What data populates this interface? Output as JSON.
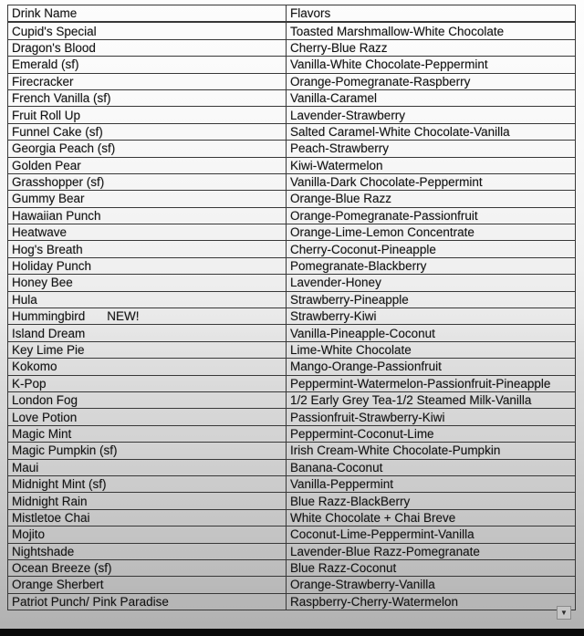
{
  "table": {
    "columns": [
      "Drink Name",
      "Flavors"
    ],
    "rows": [
      {
        "drink": "Cupid's Special",
        "flavors": "Toasted Marshmallow-White Chocolate"
      },
      {
        "drink": "Dragon's Blood",
        "flavors": "Cherry-Blue Razz"
      },
      {
        "drink": "Emerald (sf)",
        "flavors": "Vanilla-White Chocolate-Peppermint"
      },
      {
        "drink": "Firecracker",
        "flavors": "Orange-Pomegranate-Raspberry"
      },
      {
        "drink": "French Vanilla (sf)",
        "flavors": "Vanilla-Caramel"
      },
      {
        "drink": "Fruit Roll Up",
        "flavors": "Lavender-Strawberry"
      },
      {
        "drink": "Funnel Cake (sf)",
        "flavors": "Salted Caramel-White Chocolate-Vanilla"
      },
      {
        "drink": "Georgia Peach (sf)",
        "flavors": "Peach-Strawberry"
      },
      {
        "drink": "Golden Pear",
        "flavors": "Kiwi-Watermelon"
      },
      {
        "drink": "Grasshopper (sf)",
        "flavors": "Vanilla-Dark Chocolate-Peppermint"
      },
      {
        "drink": "Gummy Bear",
        "flavors": "Orange-Blue Razz"
      },
      {
        "drink": "Hawaiian Punch",
        "flavors": "Orange-Pomegranate-Passionfruit"
      },
      {
        "drink": "Heatwave",
        "flavors": "Orange-Lime-Lemon Concentrate"
      },
      {
        "drink": "Hog's Breath",
        "flavors": "Cherry-Coconut-Pineapple"
      },
      {
        "drink": "Holiday Punch",
        "flavors": "Pomegranate-Blackberry"
      },
      {
        "drink": "Honey Bee",
        "flavors": "Lavender-Honey"
      },
      {
        "drink": "Hula",
        "flavors": "Strawberry-Pineapple"
      },
      {
        "drink": "Hummingbird",
        "tag": "NEW!",
        "flavors": "Strawberry-Kiwi"
      },
      {
        "drink": "Island Dream",
        "flavors": "Vanilla-Pineapple-Coconut"
      },
      {
        "drink": "Key Lime Pie",
        "flavors": "Lime-White Chocolate"
      },
      {
        "drink": "Kokomo",
        "flavors": "Mango-Orange-Passionfruit"
      },
      {
        "drink": "K-Pop",
        "flavors": "Peppermint-Watermelon-Passionfruit-Pineapple"
      },
      {
        "drink": "London Fog",
        "flavors": "1/2 Early Grey Tea-1/2 Steamed Milk-Vanilla"
      },
      {
        "drink": "Love Potion",
        "flavors": "Passionfruit-Strawberry-Kiwi"
      },
      {
        "drink": "Magic Mint",
        "flavors": "Peppermint-Coconut-Lime"
      },
      {
        "drink": "Magic Pumpkin (sf)",
        "flavors": "Irish Cream-White Chocolate-Pumpkin"
      },
      {
        "drink": "Maui",
        "flavors": "Banana-Coconut"
      },
      {
        "drink": "Midnight Mint (sf)",
        "flavors": "Vanilla-Peppermint"
      },
      {
        "drink": "Midnight Rain",
        "flavors": "Blue Razz-BlackBerry"
      },
      {
        "drink": "Mistletoe Chai",
        "flavors": "White Chocolate + Chai Breve"
      },
      {
        "drink": "Mojito",
        "flavors": "Coconut-Lime-Peppermint-Vanilla"
      },
      {
        "drink": "Nightshade",
        "flavors": "Lavender-Blue Razz-Pomegranate"
      },
      {
        "drink": "Ocean Breeze (sf)",
        "flavors": "Blue Razz-Coconut"
      },
      {
        "drink": "Orange Sherbert",
        "flavors": "Orange-Strawberry-Vanilla"
      },
      {
        "drink": "Patriot Punch/ Pink Paradise",
        "flavors": "Raspberry-Cherry-Watermelon"
      }
    ]
  },
  "icons": {
    "dropdown_arrow": "▼"
  },
  "colors": {
    "border": "#383838",
    "text": "#141414",
    "page_top": "#fdfdfd",
    "page_bottom": "#b0b0b0",
    "bottom_bar": "#0b0b0b",
    "scroll_button_bg": "#c6c6c6"
  }
}
